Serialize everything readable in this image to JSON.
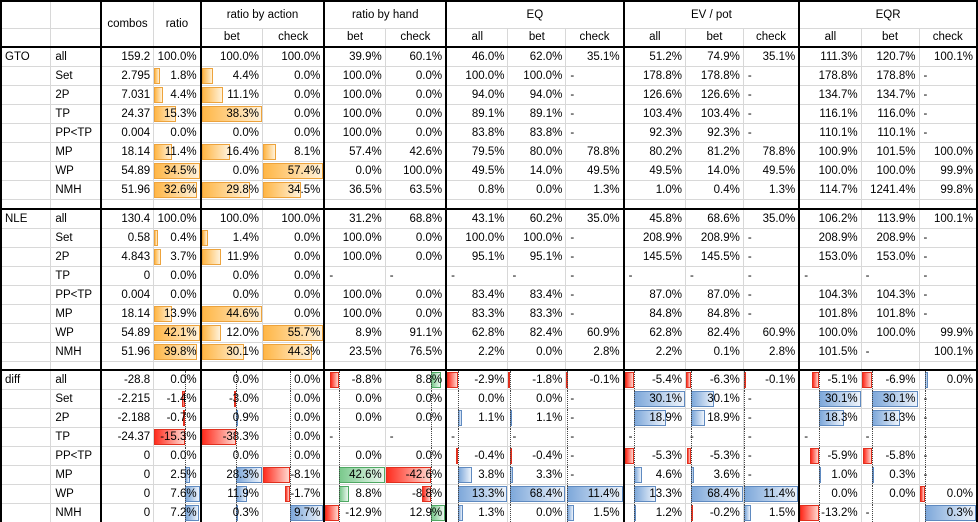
{
  "header": {
    "combos": "combos",
    "ratio": "ratio",
    "groups": [
      {
        "label": "ratio by action",
        "subs": [
          "bet",
          "check"
        ]
      },
      {
        "label": "ratio by hand",
        "subs": [
          "bet",
          "check"
        ]
      },
      {
        "label": "EQ",
        "subs": [
          "all",
          "bet",
          "check"
        ]
      },
      {
        "label": "EV / pot",
        "subs": [
          "all",
          "bet",
          "check"
        ]
      },
      {
        "label": "EQR",
        "subs": [
          "all",
          "bet",
          "check"
        ]
      }
    ]
  },
  "bar_styles": {
    "orange": {
      "border": "#eda33c",
      "from": "#ffb646",
      "to": "#fff2da"
    },
    "blue": {
      "border": "#5f8ac0",
      "from": "#7ea8da",
      "to": "#edf3fb"
    },
    "green": {
      "border": "#4fa863",
      "from": "#7bc98d",
      "to": "#eaf7ee"
    },
    "red": {
      "border": "#e0301e",
      "from": "#ff2d1f",
      "to": "#ffd7cf"
    },
    "axis_color": "#444444"
  },
  "sections": [
    {
      "id": "gto",
      "label": "GTO",
      "bar_mode": "positive",
      "rows": [
        {
          "hand": "all",
          "cells": {
            "combos": "159.2",
            "ratio": "100.0%",
            "rba_bet": "100.0%",
            "rba_check": "100.0%",
            "rbh_bet": "39.9%",
            "rbh_check": "60.1%",
            "eq_all": "46.0%",
            "eq_bet": "62.0%",
            "eq_check": "35.1%",
            "ev_all": "51.2%",
            "ev_bet": "74.9%",
            "ev_check": "35.1%",
            "eqr_all": "111.3%",
            "eqr_bet": "120.7%",
            "eqr_check": "100.1%"
          }
        },
        {
          "hand": "Set",
          "cells": {
            "combos": "2.795",
            "ratio": "1.8%",
            "rba_bet": "4.4%",
            "rba_check": "0.0%",
            "rbh_bet": "100.0%",
            "rbh_check": "0.0%",
            "eq_all": "100.0%",
            "eq_bet": "100.0%",
            "eq_check": "-",
            "ev_all": "178.8%",
            "ev_bet": "178.8%",
            "ev_check": "-",
            "eqr_all": "178.8%",
            "eqr_bet": "178.8%",
            "eqr_check": "-"
          }
        },
        {
          "hand": "2P",
          "cells": {
            "combos": "7.031",
            "ratio": "4.4%",
            "rba_bet": "11.1%",
            "rba_check": "0.0%",
            "rbh_bet": "100.0%",
            "rbh_check": "0.0%",
            "eq_all": "94.0%",
            "eq_bet": "94.0%",
            "eq_check": "-",
            "ev_all": "126.6%",
            "ev_bet": "126.6%",
            "ev_check": "-",
            "eqr_all": "134.7%",
            "eqr_bet": "134.7%",
            "eqr_check": "-"
          }
        },
        {
          "hand": "TP",
          "cells": {
            "combos": "24.37",
            "ratio": "15.3%",
            "rba_bet": "38.3%",
            "rba_check": "0.0%",
            "rbh_bet": "100.0%",
            "rbh_check": "0.0%",
            "eq_all": "89.1%",
            "eq_bet": "89.1%",
            "eq_check": "-",
            "ev_all": "103.4%",
            "ev_bet": "103.4%",
            "ev_check": "-",
            "eqr_all": "116.1%",
            "eqr_bet": "116.0%",
            "eqr_check": "-"
          }
        },
        {
          "hand": "PP<TP",
          "cells": {
            "combos": "0.004",
            "ratio": "0.0%",
            "rba_bet": "0.0%",
            "rba_check": "0.0%",
            "rbh_bet": "100.0%",
            "rbh_check": "0.0%",
            "eq_all": "83.8%",
            "eq_bet": "83.8%",
            "eq_check": "-",
            "ev_all": "92.3%",
            "ev_bet": "92.3%",
            "ev_check": "-",
            "eqr_all": "110.1%",
            "eqr_bet": "110.1%",
            "eqr_check": "-"
          }
        },
        {
          "hand": "MP",
          "cells": {
            "combos": "18.14",
            "ratio": "11.4%",
            "rba_bet": "16.4%",
            "rba_check": "8.1%",
            "rbh_bet": "57.4%",
            "rbh_check": "42.6%",
            "eq_all": "79.5%",
            "eq_bet": "80.0%",
            "eq_check": "78.8%",
            "ev_all": "80.2%",
            "ev_bet": "81.2%",
            "ev_check": "78.8%",
            "eqr_all": "100.9%",
            "eqr_bet": "101.5%",
            "eqr_check": "100.0%"
          }
        },
        {
          "hand": "WP",
          "cells": {
            "combos": "54.89",
            "ratio": "34.5%",
            "rba_bet": "0.0%",
            "rba_check": "57.4%",
            "rbh_bet": "0.0%",
            "rbh_check": "100.0%",
            "eq_all": "49.5%",
            "eq_bet": "14.0%",
            "eq_check": "49.5%",
            "ev_all": "49.5%",
            "ev_bet": "14.0%",
            "ev_check": "49.5%",
            "eqr_all": "100.0%",
            "eqr_bet": "100.0%",
            "eqr_check": "99.9%"
          }
        },
        {
          "hand": "NMH",
          "cells": {
            "combos": "51.96",
            "ratio": "32.6%",
            "rba_bet": "29.8%",
            "rba_check": "34.5%",
            "rbh_bet": "36.5%",
            "rbh_check": "63.5%",
            "eq_all": "0.8%",
            "eq_bet": "0.0%",
            "eq_check": "1.3%",
            "ev_all": "1.0%",
            "ev_bet": "0.4%",
            "ev_check": "1.3%",
            "eqr_all": "114.7%",
            "eqr_bet": "1241.4%",
            "eqr_check": "99.8%"
          }
        }
      ]
    },
    {
      "id": "nle",
      "label": "NLE",
      "bar_mode": "positive",
      "rows": [
        {
          "hand": "all",
          "cells": {
            "combos": "130.4",
            "ratio": "100.0%",
            "rba_bet": "100.0%",
            "rba_check": "100.0%",
            "rbh_bet": "31.2%",
            "rbh_check": "68.8%",
            "eq_all": "43.1%",
            "eq_bet": "60.2%",
            "eq_check": "35.0%",
            "ev_all": "45.8%",
            "ev_bet": "68.6%",
            "ev_check": "35.0%",
            "eqr_all": "106.2%",
            "eqr_bet": "113.9%",
            "eqr_check": "100.1%"
          }
        },
        {
          "hand": "Set",
          "cells": {
            "combos": "0.58",
            "ratio": "0.4%",
            "rba_bet": "1.4%",
            "rba_check": "0.0%",
            "rbh_bet": "100.0%",
            "rbh_check": "0.0%",
            "eq_all": "100.0%",
            "eq_bet": "100.0%",
            "eq_check": "-",
            "ev_all": "208.9%",
            "ev_bet": "208.9%",
            "ev_check": "-",
            "eqr_all": "208.9%",
            "eqr_bet": "208.9%",
            "eqr_check": "-"
          }
        },
        {
          "hand": "2P",
          "cells": {
            "combos": "4.843",
            "ratio": "3.7%",
            "rba_bet": "11.9%",
            "rba_check": "0.0%",
            "rbh_bet": "100.0%",
            "rbh_check": "0.0%",
            "eq_all": "95.1%",
            "eq_bet": "95.1%",
            "eq_check": "-",
            "ev_all": "145.5%",
            "ev_bet": "145.5%",
            "ev_check": "-",
            "eqr_all": "153.0%",
            "eqr_bet": "153.0%",
            "eqr_check": "-"
          }
        },
        {
          "hand": "TP",
          "cells": {
            "combos": "0",
            "ratio": "0.0%",
            "rba_bet": "0.0%",
            "rba_check": "0.0%",
            "rbh_bet": "-",
            "rbh_check": "-",
            "eq_all": "-",
            "eq_bet": "-",
            "eq_check": "-",
            "ev_all": "-",
            "ev_bet": "-",
            "ev_check": "-",
            "eqr_all": "-",
            "eqr_bet": "-",
            "eqr_check": "-"
          }
        },
        {
          "hand": "PP<TP",
          "cells": {
            "combos": "0.004",
            "ratio": "0.0%",
            "rba_bet": "0.0%",
            "rba_check": "0.0%",
            "rbh_bet": "100.0%",
            "rbh_check": "0.0%",
            "eq_all": "83.4%",
            "eq_bet": "83.4%",
            "eq_check": "-",
            "ev_all": "87.0%",
            "ev_bet": "87.0%",
            "ev_check": "-",
            "eqr_all": "104.3%",
            "eqr_bet": "104.3%",
            "eqr_check": "-"
          }
        },
        {
          "hand": "MP",
          "cells": {
            "combos": "18.14",
            "ratio": "13.9%",
            "rba_bet": "44.6%",
            "rba_check": "0.0%",
            "rbh_bet": "100.0%",
            "rbh_check": "0.0%",
            "eq_all": "83.3%",
            "eq_bet": "83.3%",
            "eq_check": "-",
            "ev_all": "84.8%",
            "ev_bet": "84.8%",
            "ev_check": "-",
            "eqr_all": "101.8%",
            "eqr_bet": "101.8%",
            "eqr_check": "-"
          }
        },
        {
          "hand": "WP",
          "cells": {
            "combos": "54.89",
            "ratio": "42.1%",
            "rba_bet": "12.0%",
            "rba_check": "55.7%",
            "rbh_bet": "8.9%",
            "rbh_check": "91.1%",
            "eq_all": "62.8%",
            "eq_bet": "82.4%",
            "eq_check": "60.9%",
            "ev_all": "62.8%",
            "ev_bet": "82.4%",
            "ev_check": "60.9%",
            "eqr_all": "100.0%",
            "eqr_bet": "100.0%",
            "eqr_check": "99.9%"
          }
        },
        {
          "hand": "NMH",
          "cells": {
            "combos": "51.96",
            "ratio": "39.8%",
            "rba_bet": "30.1%",
            "rba_check": "44.3%",
            "rbh_bet": "23.5%",
            "rbh_check": "76.5%",
            "eq_all": "2.2%",
            "eq_bet": "0.0%",
            "eq_check": "2.8%",
            "ev_all": "2.2%",
            "ev_bet": "0.1%",
            "ev_check": "2.8%",
            "eqr_all": "101.5%",
            "eqr_bet": "-",
            "eqr_check": "100.1%"
          }
        }
      ]
    },
    {
      "id": "diff",
      "label": "diff",
      "bar_mode": "diverging",
      "rows": [
        {
          "hand": "all",
          "cells": {
            "combos": "-28.8",
            "ratio": "0.0%",
            "rba_bet": "0.0%",
            "rba_check": "0.0%",
            "rbh_bet": "-8.8%",
            "rbh_check": "8.8%",
            "eq_all": "-2.9%",
            "eq_bet": "-1.8%",
            "eq_check": "-0.1%",
            "ev_all": "-5.4%",
            "ev_bet": "-6.3%",
            "ev_check": "-0.1%",
            "eqr_all": "-5.1%",
            "eqr_bet": "-6.9%",
            "eqr_check": "0.0%"
          },
          "bar_overrides": {
            "eqr_check": 0.02
          }
        },
        {
          "hand": "Set",
          "cells": {
            "combos": "-2.215",
            "ratio": "-1.4%",
            "rba_bet": "-3.0%",
            "rba_check": "0.0%",
            "rbh_bet": "0.0%",
            "rbh_check": "0.0%",
            "eq_all": "0.0%",
            "eq_bet": "0.0%",
            "eq_check": "-",
            "ev_all": "30.1%",
            "ev_bet": "30.1%",
            "ev_check": "-",
            "eqr_all": "30.1%",
            "eqr_bet": "30.1%",
            "eqr_check": "-"
          }
        },
        {
          "hand": "2P",
          "cells": {
            "combos": "-2.188",
            "ratio": "-0.7%",
            "rba_bet": "0.9%",
            "rba_check": "0.0%",
            "rbh_bet": "0.0%",
            "rbh_check": "0.0%",
            "eq_all": "1.1%",
            "eq_bet": "1.1%",
            "eq_check": "-",
            "ev_all": "18.9%",
            "ev_bet": "18.9%",
            "ev_check": "-",
            "eqr_all": "18.3%",
            "eqr_bet": "18.3%",
            "eqr_check": "-"
          }
        },
        {
          "hand": "TP",
          "cells": {
            "combos": "-24.37",
            "ratio": "-15.3%",
            "rba_bet": "-38.3%",
            "rba_check": "0.0%",
            "rbh_bet": "-",
            "rbh_check": "-",
            "eq_all": "-",
            "eq_bet": "-",
            "eq_check": "-",
            "ev_all": "-",
            "ev_bet": "-",
            "ev_check": "-",
            "eqr_all": "-",
            "eqr_bet": "-",
            "eqr_check": "-"
          }
        },
        {
          "hand": "PP<TP",
          "cells": {
            "combos": "0",
            "ratio": "0.0%",
            "rba_bet": "0.0%",
            "rba_check": "0.0%",
            "rbh_bet": "0.0%",
            "rbh_check": "0.0%",
            "eq_all": "-0.4%",
            "eq_bet": "-0.4%",
            "eq_check": "-",
            "ev_all": "-5.3%",
            "ev_bet": "-5.3%",
            "ev_check": "-",
            "eqr_all": "-5.9%",
            "eqr_bet": "-5.8%",
            "eqr_check": "-"
          }
        },
        {
          "hand": "MP",
          "cells": {
            "combos": "0",
            "ratio": "2.5%",
            "rba_bet": "28.3%",
            "rba_check": "-8.1%",
            "rbh_bet": "42.6%",
            "rbh_check": "-42.6%",
            "eq_all": "3.8%",
            "eq_bet": "3.3%",
            "eq_check": "-",
            "ev_all": "4.6%",
            "ev_bet": "3.6%",
            "ev_check": "-",
            "eqr_all": "1.0%",
            "eqr_bet": "0.3%",
            "eqr_check": "-"
          }
        },
        {
          "hand": "WP",
          "cells": {
            "combos": "0",
            "ratio": "7.6%",
            "rba_bet": "11.9%",
            "rba_check": "-1.7%",
            "rbh_bet": "8.8%",
            "rbh_check": "-8.8%",
            "eq_all": "13.3%",
            "eq_bet": "68.4%",
            "eq_check": "11.4%",
            "ev_all": "13.3%",
            "ev_bet": "68.4%",
            "ev_check": "11.4%",
            "eqr_all": "0.0%",
            "eqr_bet": "0.0%",
            "eqr_check": "0.0%"
          },
          "bar_overrides": {
            "eqr_check": -0.03
          }
        },
        {
          "hand": "NMH",
          "cells": {
            "combos": "0",
            "ratio": "7.2%",
            "rba_bet": "0.3%",
            "rba_check": "9.7%",
            "rbh_bet": "-12.9%",
            "rbh_check": "12.9%",
            "eq_all": "1.3%",
            "eq_bet": "0.0%",
            "eq_check": "1.5%",
            "ev_all": "1.2%",
            "ev_bet": "-0.2%",
            "ev_check": "1.5%",
            "eqr_all": "-13.2%",
            "eqr_bet": "-",
            "eqr_check": "0.3%"
          }
        }
      ]
    }
  ]
}
